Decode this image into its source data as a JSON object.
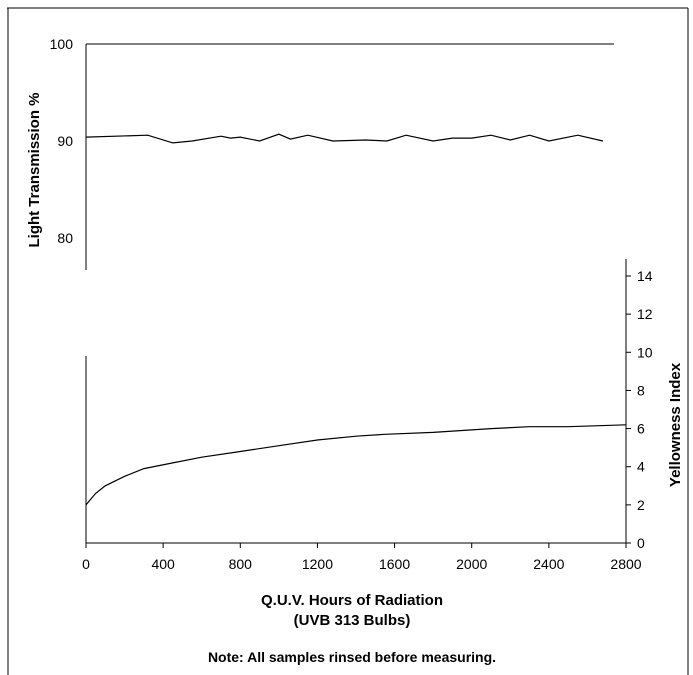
{
  "chart_data": [
    {
      "type": "line",
      "title": "",
      "xlabel": "",
      "ylabel": "Light Transmission %",
      "ylim": [
        76,
        100
      ],
      "y_ticks": [
        100,
        90,
        80
      ],
      "legend": "none",
      "grid": false,
      "series": [
        {
          "x": [
            0,
            320,
            450,
            550,
            700,
            750,
            800,
            900,
            1000,
            1060,
            1150,
            1280,
            1450,
            1560,
            1660,
            1800,
            1900,
            2000,
            2100,
            2200,
            2300,
            2400,
            2550,
            2680
          ],
          "values": [
            90.4,
            90.6,
            89.8,
            90.0,
            90.5,
            90.3,
            90.4,
            90.0,
            90.7,
            90.2,
            90.6,
            90.0,
            90.1,
            90.0,
            90.6,
            90.0,
            90.3,
            90.3,
            90.6,
            90.1,
            90.6,
            90.0,
            90.6,
            90.0
          ]
        }
      ]
    },
    {
      "type": "line",
      "title": "",
      "xlabel": "Q.U.V. Hours of Radiation",
      "xlabel2": "(UVB 313 Bulbs)",
      "ylabel": "Yellowness Index",
      "xlim": [
        0,
        2800
      ],
      "ylim": [
        0,
        14
      ],
      "x_ticks": [
        0,
        400,
        800,
        1200,
        1600,
        2000,
        2400,
        2800
      ],
      "y_ticks": [
        0,
        2,
        4,
        6,
        8,
        10,
        12,
        14
      ],
      "legend": "none",
      "grid": false,
      "series": [
        {
          "x": [
            0,
            50,
            100,
            200,
            300,
            450,
            600,
            800,
            1000,
            1200,
            1400,
            1550,
            1800,
            2100,
            2300,
            2500,
            2800
          ],
          "values": [
            2.0,
            2.6,
            3.0,
            3.5,
            3.9,
            4.2,
            4.5,
            4.8,
            5.1,
            5.4,
            5.6,
            5.7,
            5.8,
            6.0,
            6.1,
            6.1,
            6.2
          ]
        }
      ]
    }
  ],
  "note": "Note:  All samples rinsed before measuring."
}
